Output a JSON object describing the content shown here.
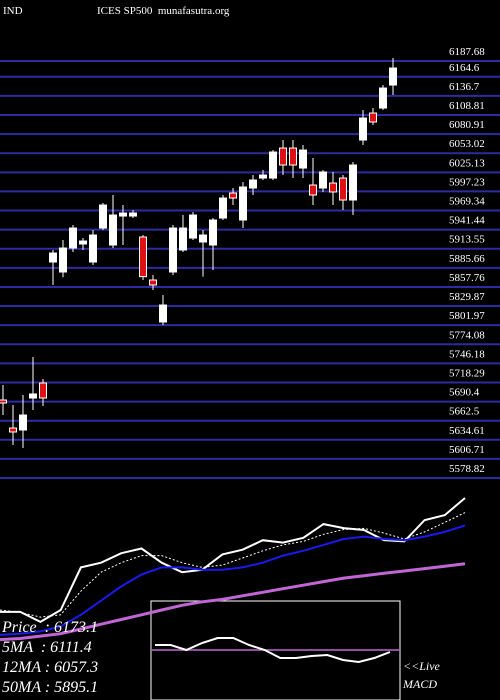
{
  "chart_data": {
    "type": "candlestick",
    "title_left": "IND",
    "title_right": "ICES SP500  munafasutra.org",
    "open": [
      5692.7,
      5651.8,
      5648.9,
      5695.6,
      5717.5,
      5894.2,
      5879.6,
      5914.6,
      5920.5,
      5894.2,
      5943.8,
      5919,
      5961.3,
      5961.3,
      5930.7,
      5867.9,
      5806.6,
      5879.6,
      5911.7,
      5929.2,
      5923.4,
      5919,
      5958.4,
      5994.9,
      5955.5,
      6002.2,
      6016.8,
      6016.8,
      6060.6,
      6060.6,
      6031.4,
      6006.6,
      6002.2,
      6009.5,
      6016.8,
      5984.7,
      6072.3,
      6111.7,
      6119,
      6152.6
    ],
    "high": [
      5714.6,
      5685.4,
      5700,
      5755.5,
      5723.4,
      5911.7,
      5926.3,
      5948.2,
      5929.2,
      5940.9,
      5980.3,
      5992,
      5977.4,
      5970.1,
      5933.6,
      5875.2,
      5846,
      5948.2,
      5962.8,
      5967.2,
      5940.9,
      5958.4,
      5992,
      6002.2,
      6011,
      6021.2,
      6028.5,
      6057.7,
      6072.3,
      6072.3,
      6065,
      6046,
      6028.5,
      6025.6,
      6021.2,
      6040.2,
      6116.1,
      6119,
      6152.6,
      6192
    ],
    "low": [
      5670.8,
      5627,
      5622.6,
      5678.1,
      5684,
      5860.6,
      5872,
      5908.8,
      5911.7,
      5889.8,
      5940.9,
      5914.6,
      5919,
      5958.4,
      5867.9,
      5853.3,
      5802.2,
      5875.2,
      5908.8,
      5926.3,
      5872.8,
      5882.5,
      5955.5,
      5977.4,
      5943.8,
      5992,
      6013.9,
      6013.9,
      6021.2,
      6016.8,
      6016.8,
      5977.4,
      5996.4,
      5977.4,
      5970.1,
      5962.8,
      6065,
      6094.2,
      6116.1,
      6138
    ],
    "close": [
      5688.3,
      5646,
      5670.8,
      5701.5,
      5695.6,
      5907.3,
      5914.6,
      5943.8,
      5924.8,
      5933.6,
      5977.4,
      5962.8,
      5965.7,
      5965.7,
      5872.8,
      5860.6,
      5831.4,
      5943.8,
      5943.8,
      5962.8,
      5933.6,
      5955.5,
      5987.6,
      5987.6,
      6003.7,
      6013.9,
      6021.2,
      6054.8,
      6035.8,
      6035.8,
      6057.7,
      5992,
      6025.6,
      5996.4,
      5984.7,
      6035.8,
      6104.4,
      6098.6,
      6148.2,
      6177.4
    ],
    "up_color": "#ffffff",
    "down_color": "#dd1111",
    "ylim": [
      5578.82,
      6187.68
    ],
    "yticks": [
      6187.68,
      6164.6,
      6136.7,
      6108.81,
      6080.91,
      6053.02,
      6025.13,
      5997.23,
      5969.34,
      5941.44,
      5913.55,
      5885.66,
      5857.76,
      5829.87,
      5801.97,
      5774.08,
      5746.18,
      5718.29,
      5690.4,
      5662.5,
      5634.61,
      5606.71,
      5578.82
    ],
    "grid": true,
    "grid_color": "#2c2ca0"
  },
  "ma_panel": {
    "ylim": [
      5489,
      6207
    ],
    "series": [
      {
        "color": "#ffffff",
        "dashed": false,
        "values": [
          5692,
          5692,
          5650,
          5700,
          5880,
          5900,
          5940,
          5960,
          5900,
          5860,
          5870,
          5935,
          5955,
          5995,
          5985,
          6005,
          6063,
          6046,
          6038,
          5995,
          5990,
          6080,
          6101,
          6173.1
        ]
      },
      {
        "color": "#ffffff",
        "dashed": true,
        "values": [
          5700,
          5690,
          5670,
          5680,
          5780,
          5860,
          5900,
          5930,
          5930,
          5900,
          5880,
          5890,
          5920,
          5950,
          5975,
          5990,
          6020,
          6040,
          6045,
          6025,
          6000,
          6030,
          6070,
          6111.4
        ]
      },
      {
        "color": "#1a1aee",
        "dashed": false,
        "values": [
          5595,
          5600,
          5610,
          5630,
          5680,
          5740,
          5800,
          5850,
          5880,
          5880,
          5870,
          5870,
          5880,
          5900,
          5930,
          5950,
          5975,
          6000,
          6010,
          6000,
          5995,
          6010,
          6030,
          6057.3
        ]
      },
      {
        "color": "#c266d6",
        "dashed": false,
        "values": [
          5575,
          5580,
          5590,
          5600,
          5620,
          5640,
          5660,
          5680,
          5700,
          5720,
          5735,
          5745,
          5760,
          5775,
          5790,
          5805,
          5820,
          5835,
          5845,
          5855,
          5865,
          5875,
          5885,
          5895.1
        ]
      }
    ],
    "info": [
      "Price  : 6173.1",
      "5MA  : 6111.4",
      "12MA : 6057.3",
      "50MA : 5895.1"
    ]
  },
  "macd_panel": {
    "ylim": [
      -5,
      5
    ],
    "values": [
      0.5,
      0.5,
      0,
      0.7,
      1.2,
      1.2,
      0.5,
      0,
      -0.8,
      -0.8,
      -0.6,
      -0.5,
      -1,
      -1.2,
      -0.8,
      -0.2
    ],
    "line_color": "#ffffff",
    "signal_level": 0,
    "signal_color": "#c266d6",
    "label": [
      "<<Live",
      "MACD"
    ]
  }
}
